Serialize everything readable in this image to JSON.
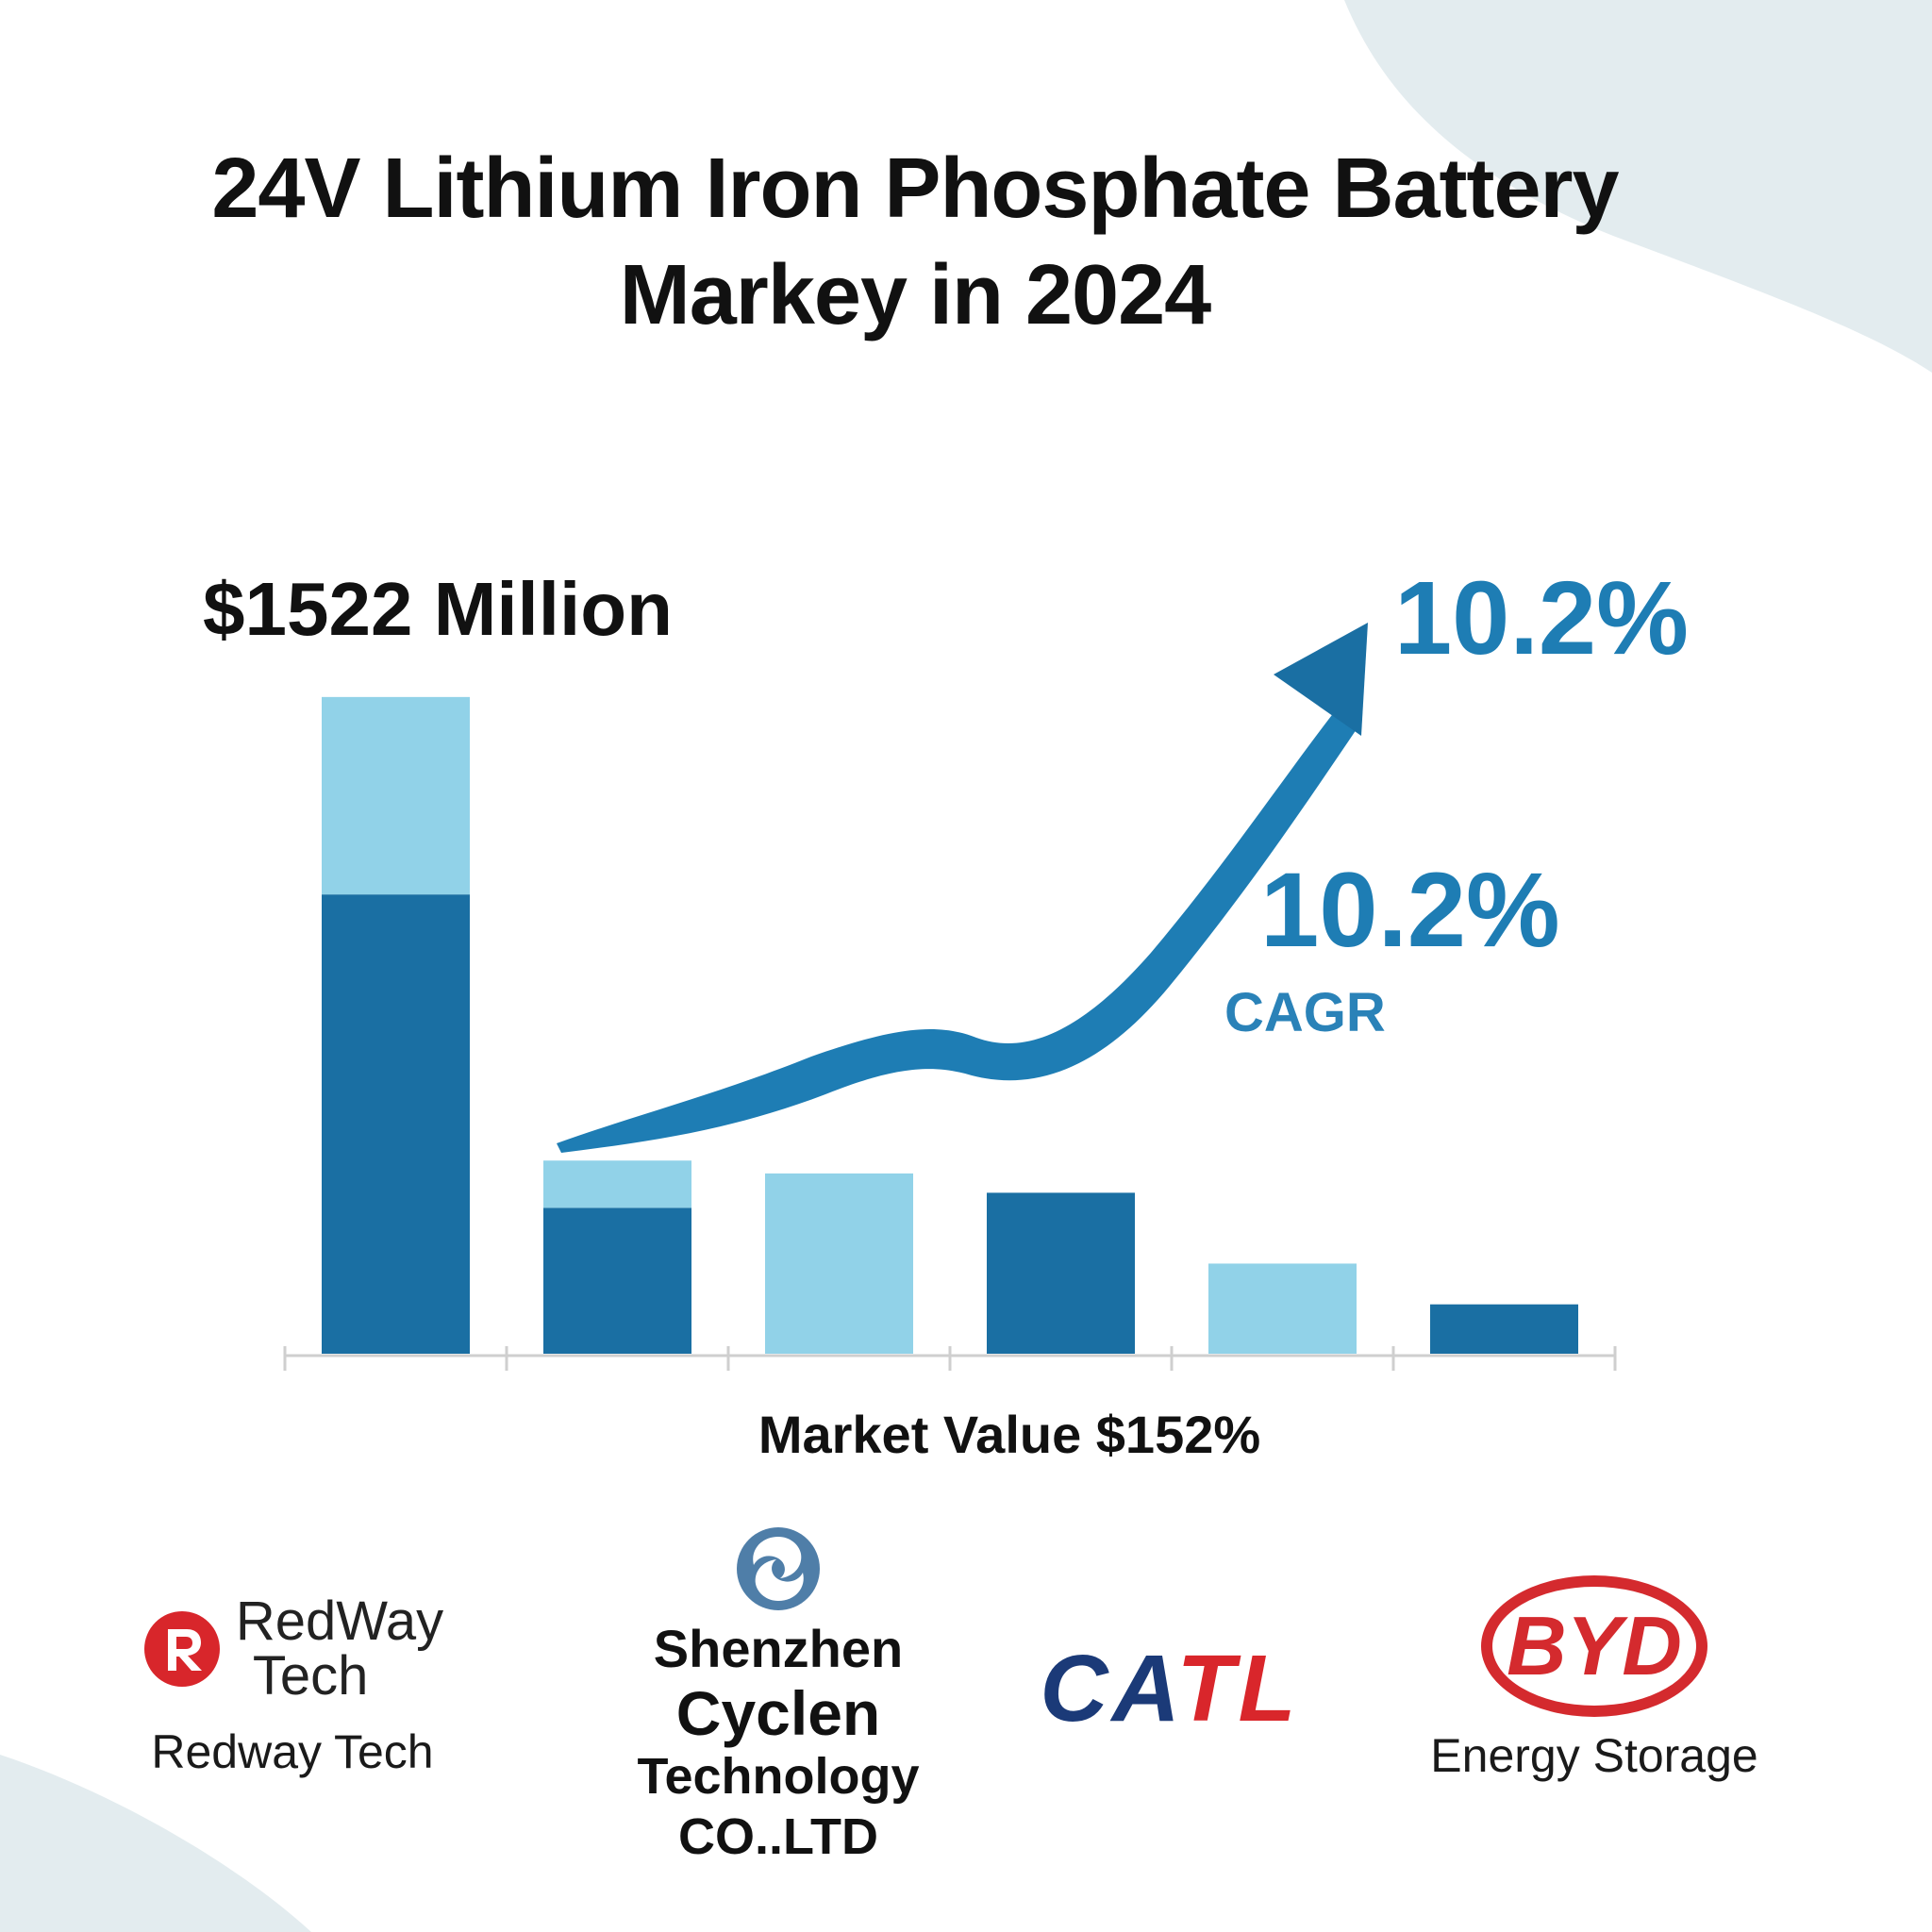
{
  "title": {
    "line1": "24V Lithium Iron Phosphate Battery",
    "line2": "Markey in 2024"
  },
  "colors": {
    "dark_blue": "#1a6fa3",
    "light_blue": "#91d2e8",
    "accent_blue": "#1e7db4",
    "byd_red": "#d42a2e",
    "redway_red": "#d8262b",
    "catl_blue": "#1b3a78",
    "background_wave": "#e3ecef"
  },
  "callouts": {
    "headline_value": "$1522 Million",
    "cagr_top": "10.2%",
    "cagr_mid": "10.2%",
    "cagr_label": "CAGR"
  },
  "chart_data": {
    "type": "bar",
    "stacked": true,
    "xlabel": "Market Value $152%",
    "categories": [
      "",
      "",
      "",
      "",
      "",
      ""
    ],
    "series": [
      {
        "color": "#1a6fa3",
        "values": [
          1070,
          340,
          0,
          375,
          0,
          115
        ]
      },
      {
        "color": "#91d2e8",
        "values": [
          460,
          110,
          420,
          0,
          210,
          0
        ]
      }
    ],
    "annotation": {
      "type": "growth-arrow",
      "label": "10.2% CAGR"
    }
  },
  "logos": {
    "redway": {
      "mark_top": "RedWay",
      "mark_bottom": "Tech",
      "caption": "Redway Tech"
    },
    "cyclen": {
      "line1": "Shenzhen",
      "line2": "Cyclen",
      "line3": "Technology CO..LTD"
    },
    "catl": {
      "part1": "CA",
      "part2": "TL"
    },
    "byd": {
      "mark": "BYD",
      "caption": "Energy Storage"
    }
  }
}
